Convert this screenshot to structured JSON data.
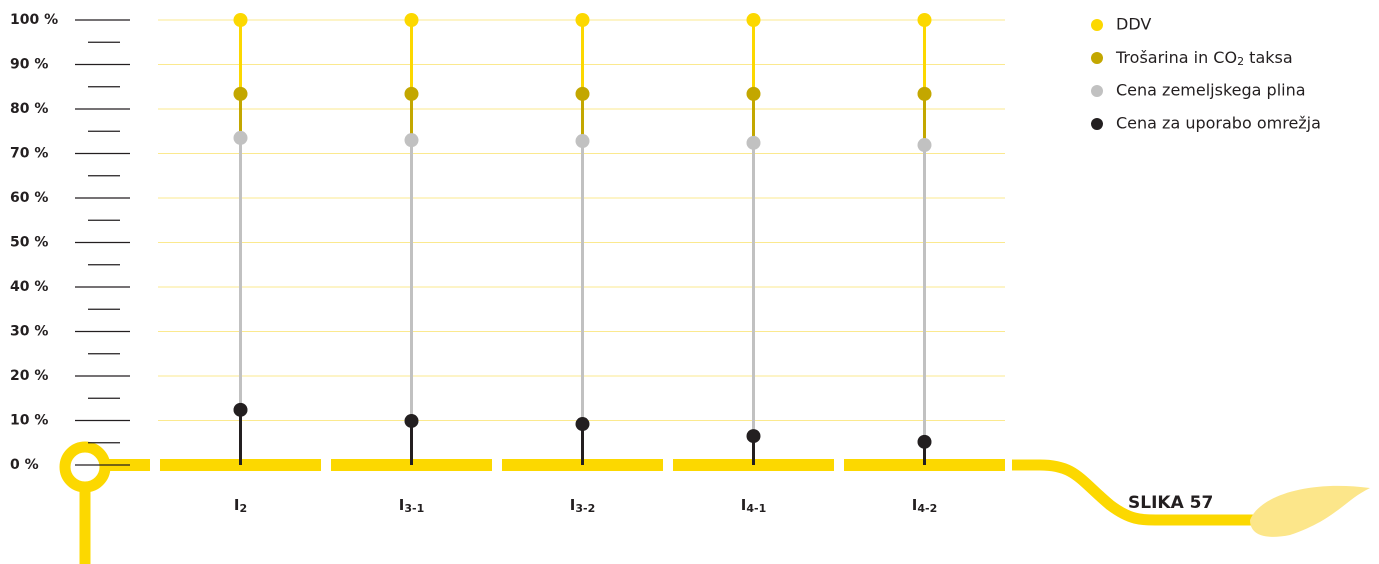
{
  "chart_data": {
    "type": "stacked-lollipop",
    "categories": [
      "I2",
      "I3-1",
      "I3-2",
      "I4-1",
      "I4-2"
    ],
    "series": [
      {
        "name": "DDV",
        "color": "#fcd800",
        "values": [
          16.6,
          16.6,
          16.6,
          16.6,
          16.6
        ]
      },
      {
        "name": "Trošarina in CO2 taksa",
        "color": "#c3a700",
        "values": [
          9.9,
          10.4,
          10.6,
          11.0,
          11.5
        ]
      },
      {
        "name": "Cena zemeljskega plina",
        "color": "#c1c1c1",
        "values": [
          61.1,
          63.1,
          63.6,
          65.9,
          66.7
        ]
      },
      {
        "name": "Cena za uporabo omrežja",
        "color": "#231f20",
        "values": [
          12.4,
          9.9,
          9.2,
          6.5,
          5.2
        ]
      }
    ],
    "ylim": [
      0,
      100
    ],
    "yticks": [
      {
        "value": 0,
        "label": "0 %"
      },
      {
        "value": 10,
        "label": "10 %"
      },
      {
        "value": 20,
        "label": "20 %"
      },
      {
        "value": 30,
        "label": "30 %"
      },
      {
        "value": 40,
        "label": "40 %"
      },
      {
        "value": 50,
        "label": "50 %"
      },
      {
        "value": 60,
        "label": "60 %"
      },
      {
        "value": 70,
        "label": "70 %"
      },
      {
        "value": 80,
        "label": "80 %"
      },
      {
        "value": 90,
        "label": "90 %"
      },
      {
        "value": 100,
        "label": "100 %"
      }
    ],
    "grid": true,
    "annotation": "SLIKA 57"
  }
}
